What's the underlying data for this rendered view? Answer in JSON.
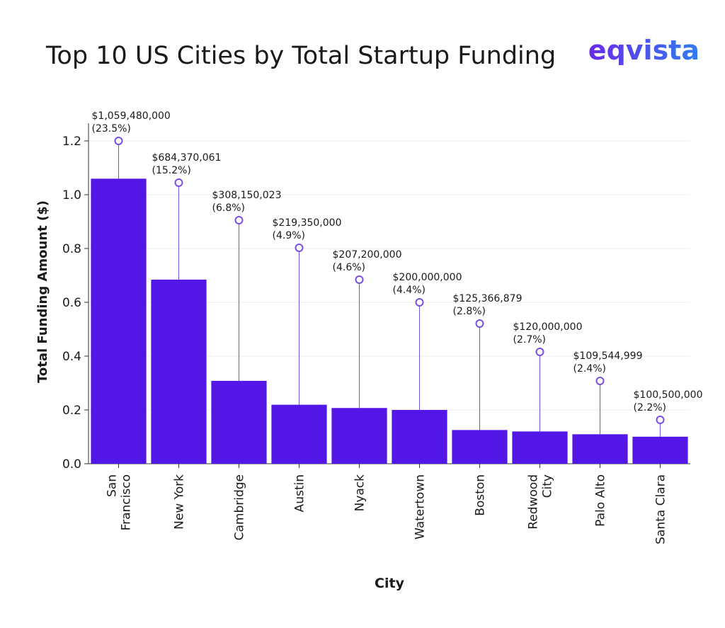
{
  "chart_data": {
    "type": "bar",
    "title": "Top 10 US Cities by Total Startup Funding",
    "brand": "eqvista",
    "x_label": "City",
    "y_label": "Total Funding Amount ($)",
    "categories": [
      "San Francisco",
      "New York",
      "Cambridge",
      "Austin",
      "Nyack",
      "Watertown",
      "Boston",
      "Redwood City",
      "Palo Alto",
      "Santa Clara"
    ],
    "values": [
      1.05948,
      0.684370061,
      0.308150023,
      0.21935,
      0.2072,
      0.2,
      0.125366879,
      0.12,
      0.109544999,
      0.1005
    ],
    "value_labels": [
      "$1,059,480,000",
      "$684,370,061",
      "$308,150,023",
      "$219,350,000",
      "$207,200,000",
      "$200,000,000",
      "$125,366,879",
      "$120,000,000",
      "$109,544,999",
      "$100,500,000"
    ],
    "percent_labels": [
      "(23.5%)",
      "(15.2%)",
      "(6.8%)",
      "(4.9%)",
      "(4.6%)",
      "(4.4%)",
      "(2.8%)",
      "(2.7%)",
      "(2.4%)",
      "(2.2%)"
    ],
    "color": "#5216e6",
    "ylim": [
      0,
      1.2
    ],
    "yticks": [
      {
        "value": 0,
        "label": "0.0"
      },
      0.2,
      0.4,
      0.6,
      0.8,
      {
        "value": 1,
        "label": "1.0"
      },
      1.2
    ],
    "grid": true
  }
}
